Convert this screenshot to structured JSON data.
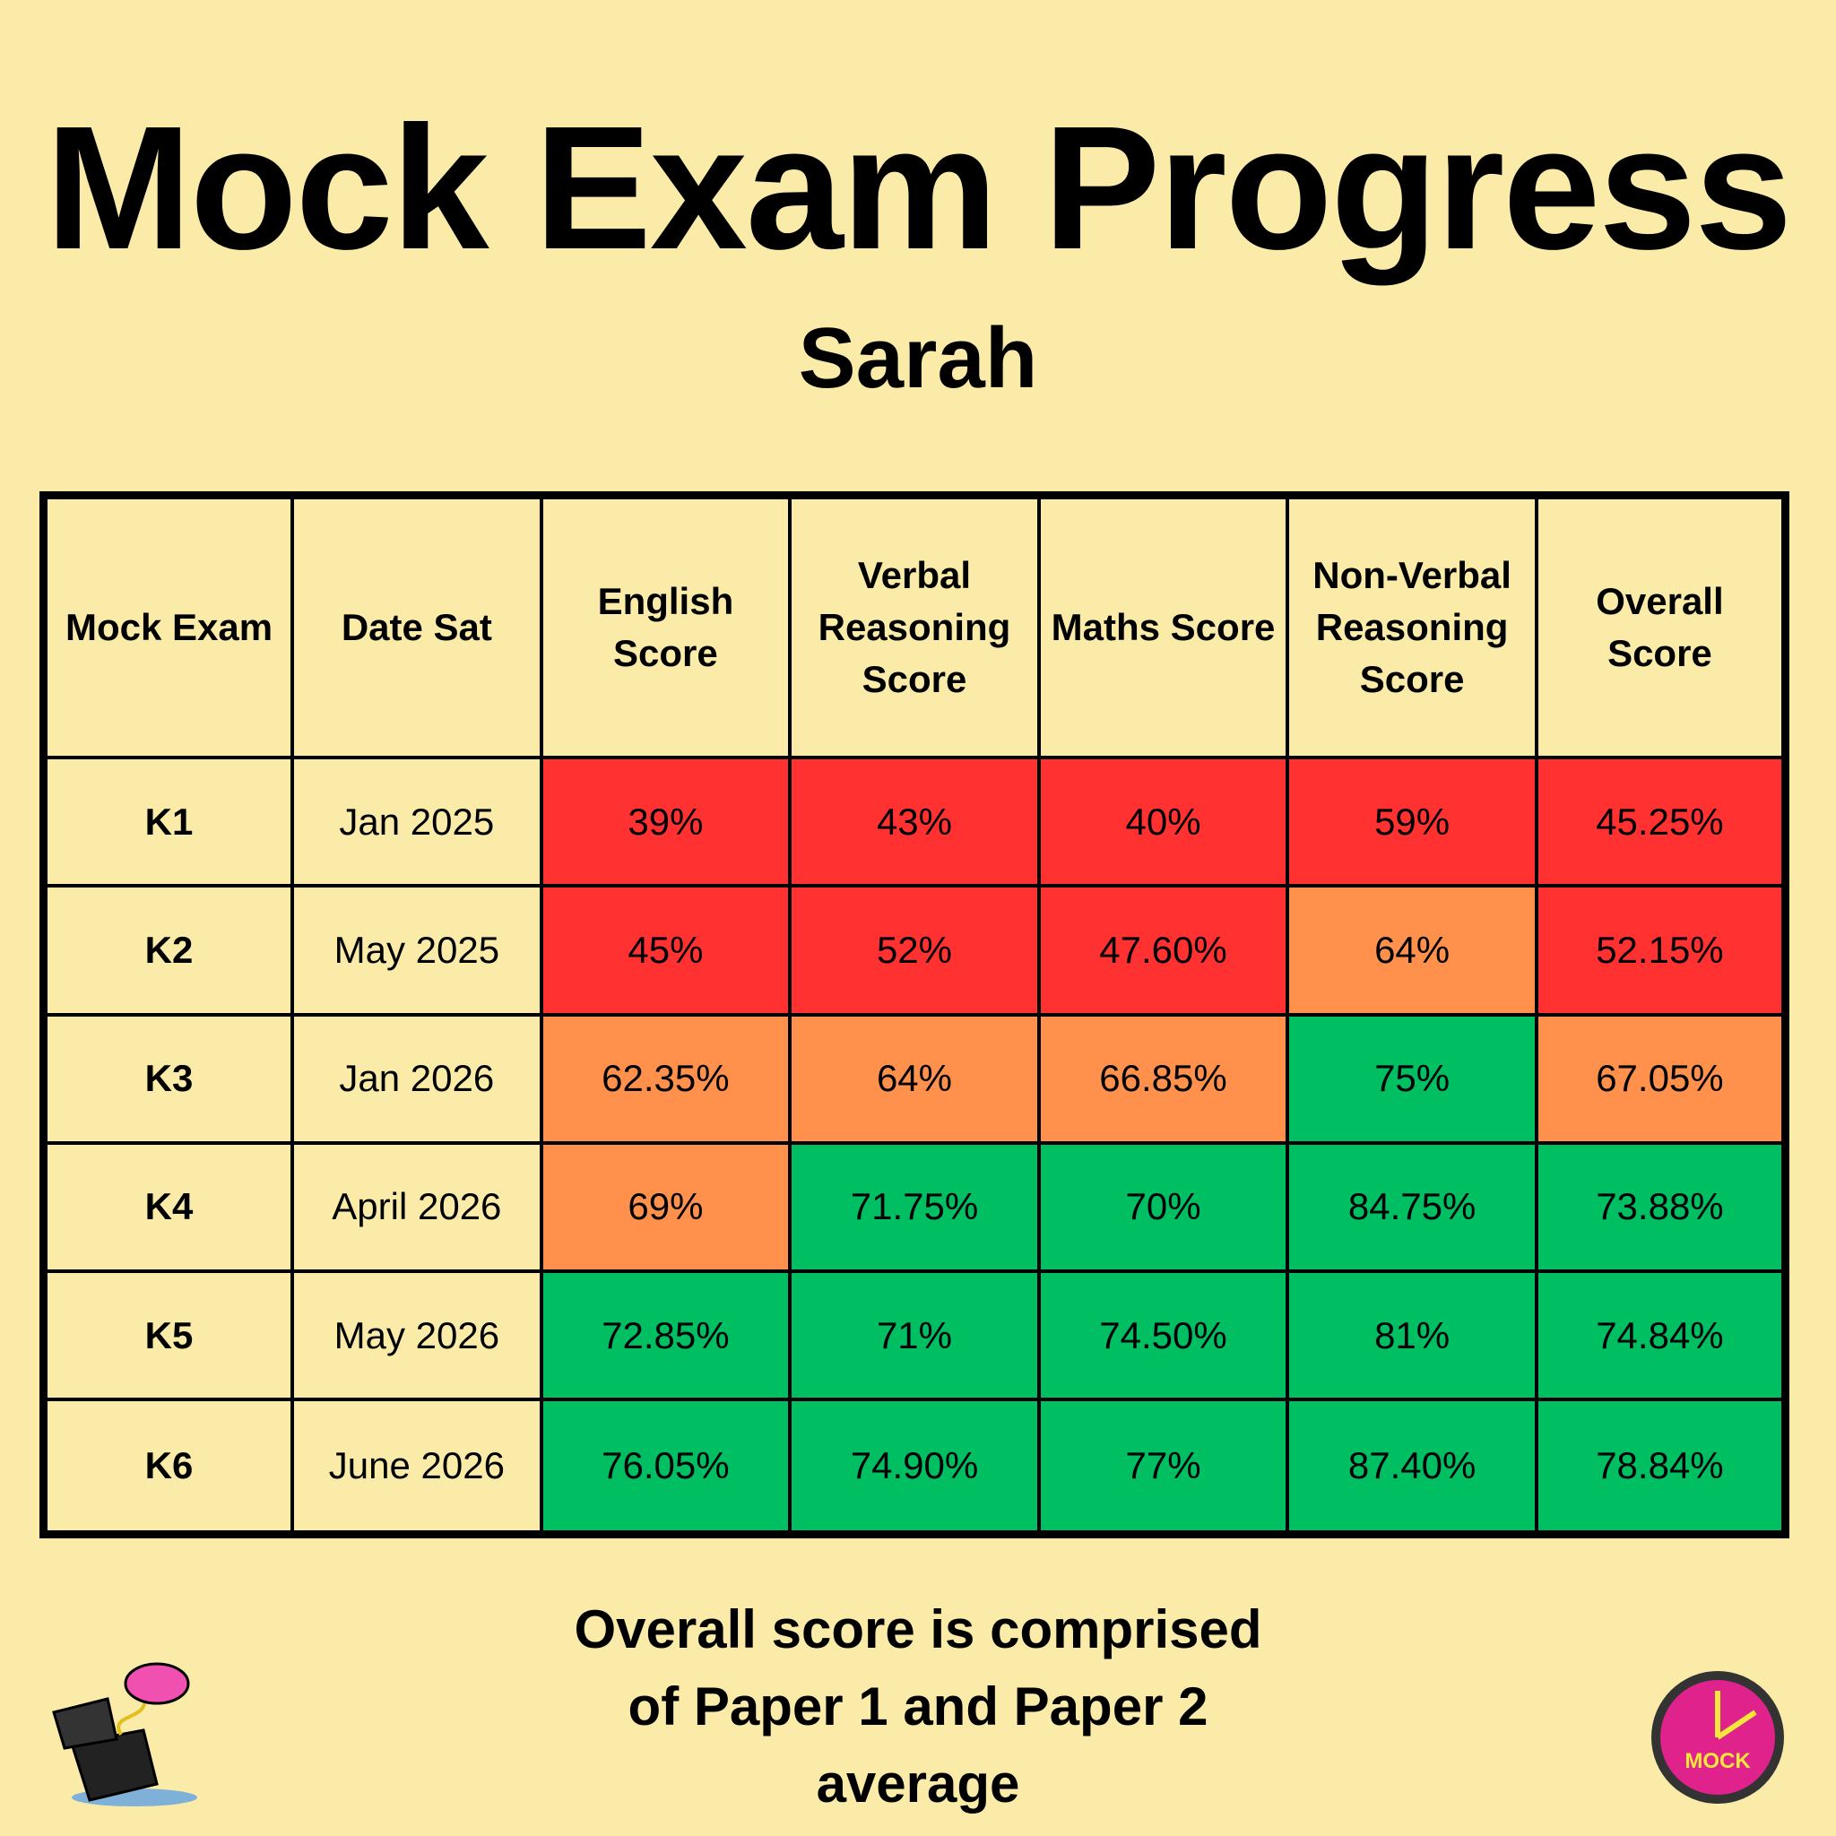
{
  "header": {
    "title": "Mock Exam Progress",
    "subtitle": "Sarah"
  },
  "table": {
    "headers": [
      "Mock Exam",
      "Date Sat",
      "English Score",
      "Verbal Reasoning Score",
      "Maths Score",
      "Non-Verbal Reasoning Score",
      "Overall Score"
    ],
    "rows": [
      [
        "K1",
        "Jan 2025",
        "39%",
        "43%",
        "40%",
        "59%",
        "45.25%"
      ],
      [
        "K2",
        "May 2025",
        "45%",
        "52%",
        "47.60%",
        "64%",
        "52.15%"
      ],
      [
        "K3",
        "Jan 2026",
        "62.35%",
        "64%",
        "66.85%",
        "75%",
        "67.05%"
      ],
      [
        "K4",
        "April 2026",
        "69%",
        "71.75%",
        "70%",
        "84.75%",
        "73.88%"
      ],
      [
        "K5",
        "May 2026",
        "72.85%",
        "71%",
        "74.50%",
        "81%",
        "74.84%"
      ],
      [
        "K6",
        "June 2026",
        "76.05%",
        "74.90%",
        "77%",
        "87.40%",
        "78.84%"
      ]
    ],
    "cell_colors": [
      [
        "#fbeba8",
        "#fbeba8",
        "#ff3131",
        "#ff3131",
        "#ff3131",
        "#ff3131",
        "#ff3131"
      ],
      [
        "#fbeba8",
        "#fbeba8",
        "#ff3131",
        "#ff3131",
        "#ff3131",
        "#ff914d",
        "#ff3131"
      ],
      [
        "#fbeba8",
        "#fbeba8",
        "#ff914d",
        "#ff914d",
        "#ff914d",
        "#00bf63",
        "#ff914d"
      ],
      [
        "#fbeba8",
        "#fbeba8",
        "#ff914d",
        "#00bf63",
        "#00bf63",
        "#00bf63",
        "#00bf63"
      ],
      [
        "#fbeba8",
        "#fbeba8",
        "#00bf63",
        "#00bf63",
        "#00bf63",
        "#00bf63",
        "#00bf63"
      ],
      [
        "#fbeba8",
        "#fbeba8",
        "#00bf63",
        "#00bf63",
        "#00bf63",
        "#00bf63",
        "#00bf63"
      ]
    ]
  },
  "footer": {
    "note": "Overall score is comprised of Paper 1 and Paper 2 average",
    "logo_text": "MOCK"
  }
}
